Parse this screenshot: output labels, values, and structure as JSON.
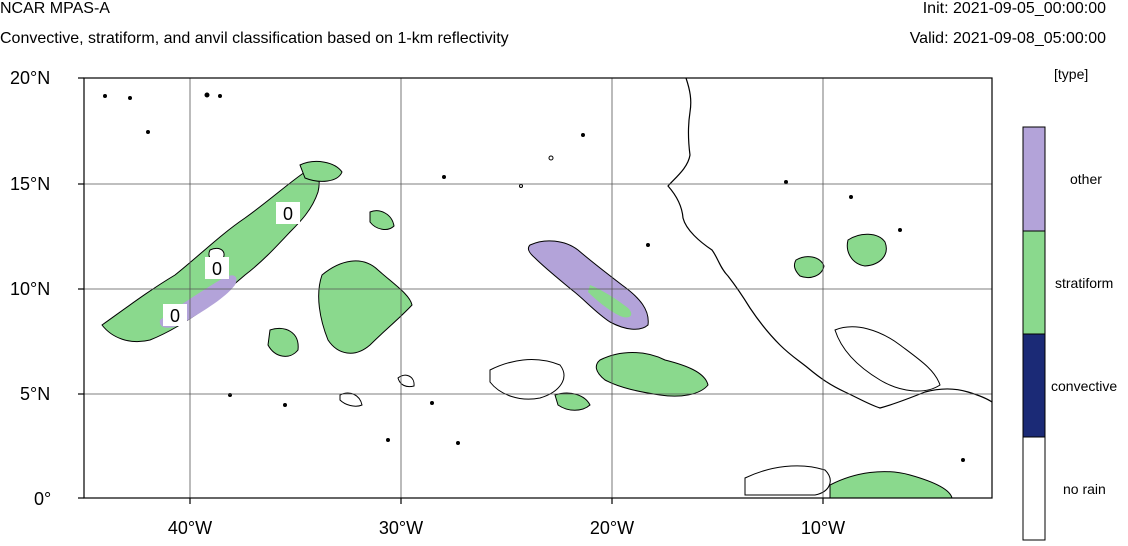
{
  "header": {
    "title": "NCAR MPAS-A",
    "subtitle": "Convective, stratiform, and anvil classification based on 1-km reflectivity",
    "init": "Init: 2021-09-05_00:00:00",
    "valid": "Valid: 2021-09-08_05:00:00"
  },
  "map": {
    "lat_labels": [
      "20°N",
      "15°N",
      "10°N",
      "5°N",
      "0°"
    ],
    "lon_labels": [
      "40°W",
      "30°W",
      "20°W",
      "10°W"
    ],
    "lat_range": [
      0,
      20
    ],
    "lon_range": [
      -45,
      -3
    ],
    "gridlines": true,
    "contour_labels": [
      "0",
      "0",
      "0"
    ]
  },
  "legend": {
    "title": "[type]",
    "placement": "right",
    "items": [
      {
        "label": "other",
        "color": "#b3a3d9"
      },
      {
        "label": "stratiform",
        "color": "#8ad98d"
      },
      {
        "label": "convective",
        "color": "#1b2a76"
      },
      {
        "label": "no rain",
        "color": "#ffffff"
      }
    ]
  },
  "colors": {
    "other": "#b3a3d9",
    "stratiform": "#8ad98d",
    "convective": "#1b2a76",
    "coastline": "#000000"
  }
}
